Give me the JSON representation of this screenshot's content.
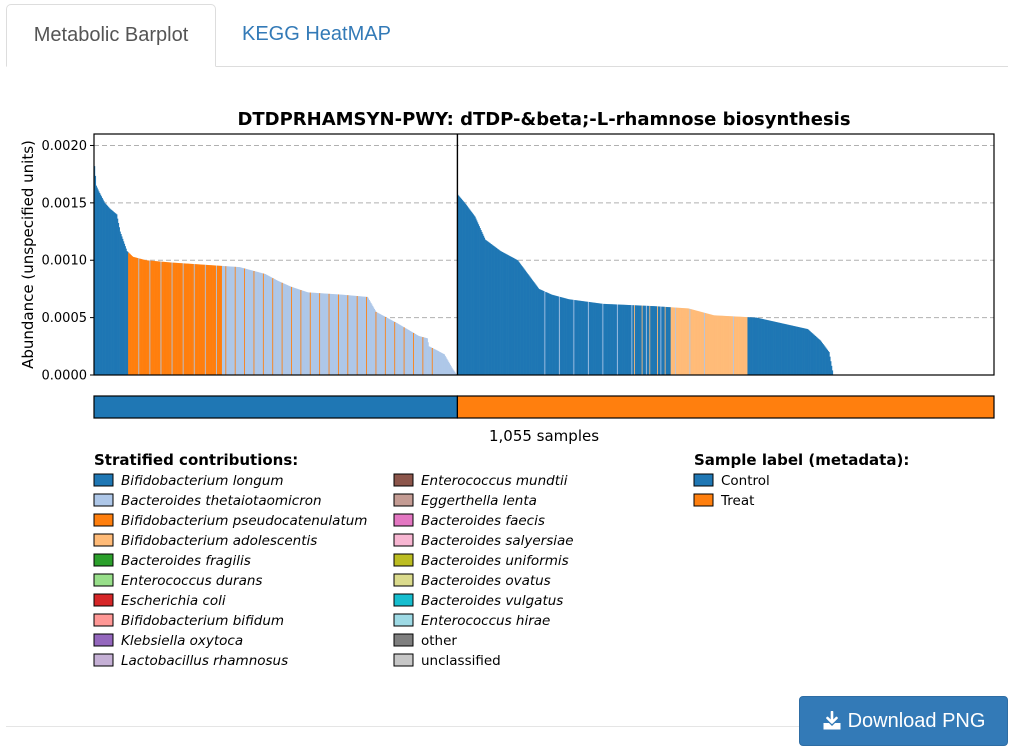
{
  "tabs": [
    {
      "label": "Metabolic Barplot",
      "active": true
    },
    {
      "label": "KEGG HeatMAP",
      "active": false
    }
  ],
  "download": {
    "label": "Download PNG",
    "icon": "download-icon"
  },
  "colors": {
    "tab_active_text": "#555555",
    "link": "#337ab7",
    "button_bg": "#337ab7",
    "control": "#1f77b4",
    "treat": "#ff7f0e"
  },
  "chart_data": {
    "type": "bar",
    "stacked": true,
    "title": "DTDPRHAMSYN-PWY: dTDP-&beta;-L-rhamnose biosynthesis",
    "ylabel": "Abundance (unspecified units)",
    "xlabel": "1,055 samples",
    "ylim": [
      0,
      0.0021
    ],
    "yticks": [
      "0.0000",
      "0.0005",
      "0.0010",
      "0.0015",
      "0.0020"
    ],
    "grid": "y dashed",
    "groups": [
      {
        "name": "Control",
        "color": "#1f77b4",
        "n_samples": 426,
        "profile": [
          [
            0,
            0.00182
          ],
          [
            2,
            0.00165
          ],
          [
            5,
            0.0016
          ],
          [
            12,
            0.0015
          ],
          [
            18,
            0.00145
          ],
          [
            26,
            0.0014
          ],
          [
            30,
            0.00125
          ],
          [
            38,
            0.00108
          ],
          [
            45,
            0.00103
          ],
          [
            60,
            0.001
          ],
          [
            90,
            0.00098
          ],
          [
            130,
            0.00096
          ],
          [
            170,
            0.00094
          ],
          [
            200,
            0.00088
          ],
          [
            215,
            0.00082
          ],
          [
            230,
            0.00077
          ],
          [
            250,
            0.00072
          ],
          [
            290,
            0.0007
          ],
          [
            320,
            0.00068
          ],
          [
            330,
            0.00055
          ],
          [
            355,
            0.00045
          ],
          [
            380,
            0.00034
          ],
          [
            390,
            0.00032
          ],
          [
            392,
            0.00025
          ],
          [
            400,
            0.00022
          ],
          [
            410,
            0.00018
          ],
          [
            420,
            5e-05
          ],
          [
            425,
            0.0
          ]
        ],
        "segments": [
          {
            "range": [
              0,
              40
            ],
            "species": "Bifidobacterium longum"
          },
          {
            "range": [
              40,
              150
            ],
            "species": "Bifidobacterium pseudocatenulatum"
          },
          {
            "range": [
              150,
              330
            ],
            "species": "Bacteroides thetaiotaomicron"
          },
          {
            "range": [
              330,
              426
            ],
            "species": "Bacteroides thetaiotaomicron"
          }
        ]
      },
      {
        "name": "Treat",
        "color": "#ff7f0e",
        "n_samples": 629,
        "profile": [
          [
            0,
            0.00157
          ],
          [
            8,
            0.0015
          ],
          [
            20,
            0.00138
          ],
          [
            32,
            0.00118
          ],
          [
            50,
            0.00108
          ],
          [
            70,
            0.001
          ],
          [
            80,
            0.0009
          ],
          [
            90,
            0.0008
          ],
          [
            95,
            0.00075
          ],
          [
            110,
            0.0007
          ],
          [
            130,
            0.00066
          ],
          [
            170,
            0.00062
          ],
          [
            230,
            0.0006
          ],
          [
            270,
            0.00058
          ],
          [
            300,
            0.00052
          ],
          [
            350,
            0.0005
          ],
          [
            380,
            0.00045
          ],
          [
            410,
            0.0004
          ],
          [
            425,
            0.0003
          ],
          [
            435,
            0.0002
          ],
          [
            440,
            0.0
          ],
          [
            629,
            0.0
          ]
        ],
        "segments": [
          {
            "range": [
              0,
              90
            ],
            "species": "Bifidobacterium longum"
          },
          {
            "range": [
              90,
              250
            ],
            "species": "Bifidobacterium longum"
          },
          {
            "range": [
              250,
              340
            ],
            "species": "Bifidobacterium adolescentis"
          },
          {
            "range": [
              340,
              440
            ],
            "species": "Bifidobacterium longum"
          }
        ]
      }
    ],
    "legend_species_title": "Stratified contributions:",
    "legend_species": [
      {
        "name": "Bifidobacterium longum",
        "color": "#1f77b4"
      },
      {
        "name": "Bacteroides thetaiotaomicron",
        "color": "#aec7e8"
      },
      {
        "name": "Bifidobacterium pseudocatenulatum",
        "color": "#ff7f0e"
      },
      {
        "name": "Bifidobacterium adolescentis",
        "color": "#ffbb78"
      },
      {
        "name": "Bacteroides fragilis",
        "color": "#2ca02c"
      },
      {
        "name": "Enterococcus durans",
        "color": "#98df8a"
      },
      {
        "name": "Escherichia coli",
        "color": "#d62728"
      },
      {
        "name": "Bifidobacterium bifidum",
        "color": "#ff9896"
      },
      {
        "name": "Klebsiella oxytoca",
        "color": "#9467bd"
      },
      {
        "name": "Lactobacillus rhamnosus",
        "color": "#c5b0d5"
      },
      {
        "name": "Enterococcus mundtii",
        "color": "#8c564b"
      },
      {
        "name": "Eggerthella lenta",
        "color": "#c49c94"
      },
      {
        "name": "Bacteroides faecis",
        "color": "#e377c2"
      },
      {
        "name": "Bacteroides salyersiae",
        "color": "#f7b6d2"
      },
      {
        "name": "Bacteroides uniformis",
        "color": "#bcbd22"
      },
      {
        "name": "Bacteroides ovatus",
        "color": "#dbdb8d"
      },
      {
        "name": "Bacteroides vulgatus",
        "color": "#17becf"
      },
      {
        "name": "Enterococcus hirae",
        "color": "#9edae5"
      },
      {
        "name": "other",
        "color": "#7f7f7f",
        "italic": false
      },
      {
        "name": "unclassified",
        "color": "#c7c7c7",
        "italic": false
      }
    ],
    "legend_samples_title": "Sample label (metadata):",
    "legend_samples": [
      {
        "name": "Control",
        "color": "#1f77b4"
      },
      {
        "name": "Treat",
        "color": "#ff7f0e"
      }
    ]
  }
}
